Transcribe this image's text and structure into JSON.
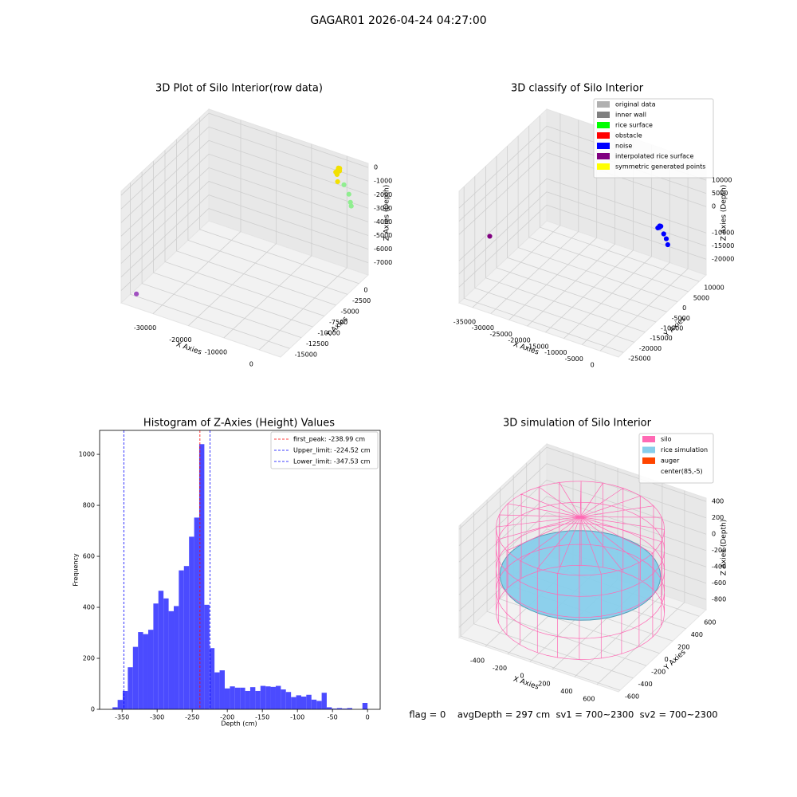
{
  "title": "GAGAR01 2026-04-24 04:27:00",
  "footer": "flag = 0    avgDepth = 297 cm  sv1 = 700~2300  sv2 = 700~2300",
  "chart_data": [
    {
      "type": "scatter3d",
      "title": "3D Plot of Silo Interior(row data)",
      "xlabel": "X Axies",
      "ylabel": "Y Axies",
      "zlabel": "Z Axies (Depth)",
      "xlim": [
        -39000,
        6000
      ],
      "ylim": [
        -17000,
        2000
      ],
      "zlim": [
        -7900,
        300
      ],
      "xticks": [
        -30000,
        -20000,
        -10000,
        0
      ],
      "yticks": [
        0,
        -2500,
        -5000,
        -7500,
        -10000,
        -12500,
        -15000
      ],
      "zticks": [
        0,
        -1000,
        -2000,
        -3000,
        -4000,
        -5000,
        -6000,
        -7000
      ],
      "series": [
        {
          "color": "#f2e000",
          "x": [
            0,
            300,
            -300,
            200,
            -200,
            400,
            100
          ],
          "y": [
            0,
            200,
            -200,
            -300,
            300,
            100,
            -100
          ],
          "z": [
            -100,
            0,
            -200,
            -300,
            -50,
            -150,
            -900
          ]
        },
        {
          "color": "#90ee90",
          "x": [
            1500,
            2500,
            2800,
            2900
          ],
          "y": [
            200,
            500,
            600,
            700
          ],
          "z": [
            -1100,
            -1800,
            -2400,
            -2700
          ]
        },
        {
          "color": "#a050c0",
          "x": [
            -36000
          ],
          "y": [
            -16000
          ],
          "z": [
            -7300
          ]
        }
      ]
    },
    {
      "type": "scatter3d",
      "title": "3D classify of Silo Interior",
      "xlabel": "X Axies",
      "ylabel": "Y Axies",
      "zlabel": "Z Axies (Depth)",
      "xlim": [
        -38700,
        5000
      ],
      "ylim": [
        -27300,
        13200
      ],
      "zlim": [
        -26000,
        16400
      ],
      "xticks": [
        -35000,
        -30000,
        -25000,
        -20000,
        -15000,
        -10000,
        -5000,
        0
      ],
      "yticks": [
        10000,
        5000,
        0,
        -5000,
        -10000,
        -15000,
        -20000,
        -25000
      ],
      "zticks": [
        10000,
        5000,
        0,
        -10000,
        -15000,
        -20000
      ],
      "series": [
        {
          "name": "original data",
          "color": "#b0b0b0",
          "x": [],
          "y": [],
          "z": []
        },
        {
          "name": "inner wall",
          "color": "#808080",
          "x": [],
          "y": [],
          "z": []
        },
        {
          "name": "rice surface",
          "color": "#00ff00",
          "x": [],
          "y": [],
          "z": []
        },
        {
          "name": "obstacle",
          "color": "#ff0000",
          "x": [],
          "y": [],
          "z": []
        },
        {
          "name": "noise",
          "color": "#0000ff",
          "x": [
            0,
            300,
            -300,
            200,
            -200,
            100,
            1500,
            2500,
            3500
          ],
          "y": [
            0,
            200,
            -200,
            -300,
            300,
            0,
            -500,
            -1000,
            -2000
          ],
          "z": [
            0,
            300,
            -300,
            200,
            -200,
            500,
            -1500,
            -2500,
            -3500
          ]
        },
        {
          "name": "interpolated rice surface",
          "color": "#800080",
          "x": [
            -37000
          ],
          "y": [
            -16000
          ],
          "z": [
            -8600
          ]
        },
        {
          "name": "symmetric generated points",
          "color": "#ffff00",
          "x": [],
          "y": [],
          "z": []
        }
      ]
    },
    {
      "type": "histogram",
      "title": "Histogram of Z-Axies (Height) Values",
      "xlabel": "Depth (cm)",
      "ylabel": "Frequency",
      "color": "#4b4bff",
      "bins": [
        -363.6,
        -356.3,
        -349.1,
        -341.8,
        -334.5,
        -327.2,
        -320.0,
        -312.7,
        -305.4,
        -298.2,
        -290.9,
        -283.6,
        -276.3,
        -269.1,
        -261.8,
        -254.5,
        -247.2,
        -240.0,
        -232.7,
        -225.4,
        -218.2,
        -210.9,
        -203.6,
        -196.3,
        -189.1,
        -181.8,
        -174.5,
        -167.3,
        -160.0,
        -152.7,
        -145.4,
        -138.2,
        -130.9,
        -123.6,
        -116.4,
        -109.1,
        -101.8,
        -94.5,
        -87.3,
        -80.0,
        -72.7,
        -65.4,
        -58.2,
        -50.9,
        -43.6,
        -36.4,
        -29.1,
        -21.8,
        -14.5,
        -7.3,
        0.0
      ],
      "values": [
        8,
        37,
        72,
        165,
        245,
        303,
        295,
        312,
        415,
        465,
        435,
        385,
        405,
        545,
        562,
        677,
        752,
        1040,
        410,
        240,
        145,
        153,
        82,
        90,
        85,
        85,
        72,
        87,
        72,
        92,
        90,
        88,
        92,
        78,
        68,
        48,
        55,
        50,
        57,
        38,
        33,
        65,
        8,
        3,
        5,
        3,
        5,
        0,
        0,
        25
      ],
      "xlim": [
        -382,
        18
      ],
      "ylim": [
        0,
        1094
      ],
      "xticks": [
        -350,
        -300,
        -250,
        -200,
        -150,
        -100,
        -50,
        0
      ],
      "yticks": [
        0,
        200,
        400,
        600,
        800,
        1000
      ],
      "legend": "upper right",
      "vlines": [
        {
          "name": "first_peak: -238.99 cm",
          "value": -238.99,
          "color": "#ff0000"
        },
        {
          "name": "Upper_limit: -224.52 cm",
          "value": -224.52,
          "color": "#0000ff"
        },
        {
          "name": "Lower_limit: -347.53 cm",
          "value": -347.53,
          "color": "#0000ff"
        }
      ]
    },
    {
      "type": "surface3d",
      "title": "3D simulation of Silo Interior",
      "xlabel": "X Axies",
      "ylabel": "Y Axies",
      "zlabel": "Z Axies (Depth)",
      "xlim": [
        -636,
        794
      ],
      "ylim": [
        -624,
        706
      ],
      "zlim": [
        -925,
        441
      ],
      "xticks": [
        -400,
        -200,
        0,
        200,
        400,
        600
      ],
      "yticks": [
        600,
        400,
        200,
        0,
        -200,
        -400,
        -600
      ],
      "zticks": [
        400,
        200,
        0,
        -200,
        -400,
        -600,
        -800
      ],
      "center": [
        85,
        -5
      ],
      "series": [
        {
          "name": "silo",
          "color": "#ff69b4",
          "kind": "cylinder",
          "radius": 650,
          "z": [
            -750,
            280
          ],
          "apex": 420
        },
        {
          "name": "rice simulation",
          "color": "#87ceeb",
          "kind": "disk",
          "radius": 620,
          "z": -297
        },
        {
          "name": "auger",
          "color": "#ff4500",
          "x": [],
          "y": [],
          "z": []
        },
        {
          "name": "center(85,-5)",
          "color": "#ffffff",
          "x": [],
          "y": [],
          "z": []
        }
      ]
    }
  ]
}
